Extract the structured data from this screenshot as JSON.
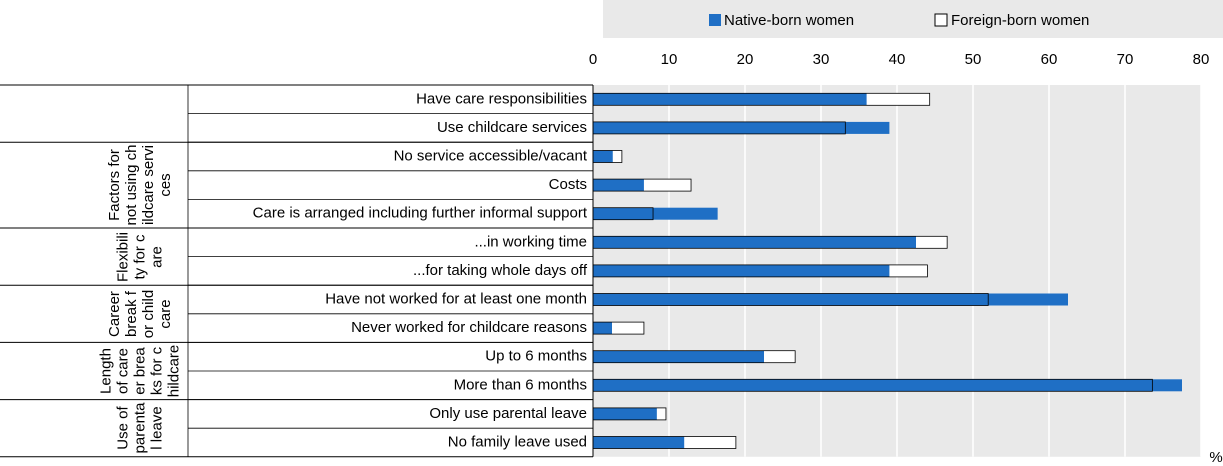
{
  "chart_data": {
    "type": "bar",
    "orientation": "horizontal",
    "overlap": true,
    "categories": [
      "Have care responsibilities",
      "Use childcare services",
      "No service accessible/vacant",
      "Costs",
      "Care is arranged including further informal support",
      "...in working time",
      "...for taking whole days off",
      "Have not worked for at least one month",
      "Never worked for childcare reasons",
      "Up to 6 months",
      "More than 6 months",
      "Only use parental leave",
      "No family leave used"
    ],
    "groups": [
      {
        "label": null,
        "rows": 2
      },
      {
        "label": "Factors for not using childcare services",
        "rows": 3
      },
      {
        "label": "Flexibility for care",
        "rows": 2
      },
      {
        "label": "Career break for childcare",
        "rows": 2
      },
      {
        "label": "Length of career breaks for childcare",
        "rows": 2
      },
      {
        "label": "Use of parental leave",
        "rows": 2
      }
    ],
    "series": [
      {
        "name": "Native-born women",
        "color": "#1f6fc5",
        "values": [
          36,
          39,
          2.6,
          6.7,
          16.4,
          42.5,
          39,
          62.5,
          2.5,
          22.5,
          77.5,
          8.4,
          12
        ]
      },
      {
        "name": "Foreign-born women",
        "color": "#ffffff",
        "values": [
          44.3,
          33.2,
          3.8,
          12.9,
          7.9,
          46.6,
          44,
          52,
          6.7,
          26.6,
          73.6,
          9.6,
          18.8
        ]
      }
    ],
    "xlim": [
      0,
      80
    ],
    "xticks": [
      0,
      10,
      20,
      30,
      40,
      50,
      60,
      70,
      80
    ],
    "unit_label": "%",
    "grid": true,
    "legend": "top"
  }
}
